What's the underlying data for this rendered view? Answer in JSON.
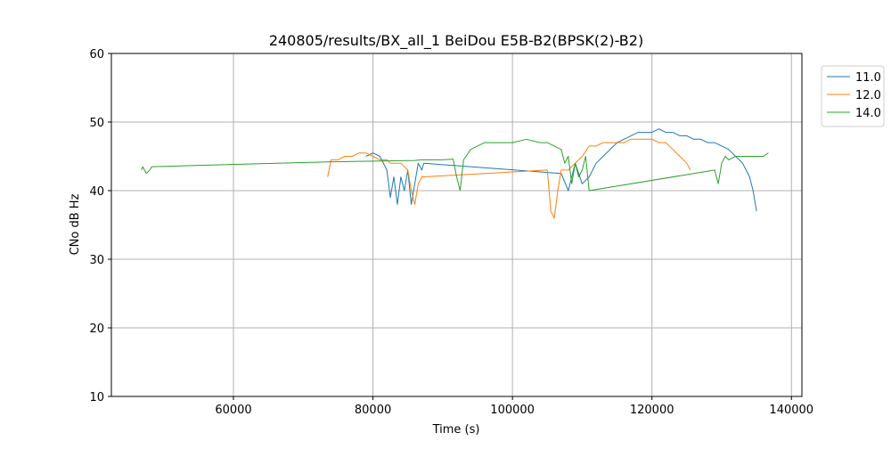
{
  "chart_data": {
    "type": "line",
    "title": "240805/results/BX_all_1 BeiDou E5B-B2(BPSK(2)-B2)",
    "xlabel": "Time (s)",
    "ylabel": "CNo dB Hz",
    "xlim": [
      42500,
      141500
    ],
    "ylim": [
      10,
      60
    ],
    "xticks": [
      60000,
      80000,
      100000,
      120000,
      140000
    ],
    "yticks": [
      10,
      20,
      30,
      40,
      50,
      60
    ],
    "grid": true,
    "legend_position": "outside-right-top",
    "series": [
      {
        "name": "11.0",
        "color": "#1f77b4",
        "x": [
          79000,
          80000,
          81000,
          82000,
          82500,
          83000,
          83500,
          84000,
          84500,
          85000,
          85500,
          86000,
          86500,
          87000,
          87300,
          107000,
          108000,
          109000,
          110000,
          111000,
          112000,
          113000,
          114000,
          115000,
          116000,
          117000,
          118000,
          119000,
          120000,
          121000,
          122000,
          123000,
          124000,
          125000,
          126000,
          127000,
          128000,
          129000,
          130000,
          131000,
          132000,
          133000,
          134000,
          134500,
          135000
        ],
        "y": [
          45,
          45.5,
          45,
          43,
          39,
          42,
          38,
          42,
          40,
          43,
          38,
          41,
          44,
          43,
          44,
          42.5,
          40,
          44,
          41,
          42,
          44,
          45,
          46,
          47,
          47.5,
          48,
          48.5,
          48.5,
          48.5,
          49,
          48.5,
          48.5,
          48,
          48,
          47.5,
          47.5,
          47,
          47,
          46.5,
          46,
          45,
          44,
          42,
          40,
          37
        ]
      },
      {
        "name": "12.0",
        "color": "#ff7f0e",
        "x": [
          73500,
          74000,
          75000,
          76000,
          77000,
          78000,
          79000,
          80000,
          81000,
          82000,
          82500,
          83000,
          84000,
          85000,
          85500,
          86000,
          86500,
          87000,
          105000,
          105500,
          106000,
          106500,
          107000,
          108000,
          109000,
          110000,
          111000,
          112000,
          113000,
          114000,
          115000,
          116000,
          117000,
          118000,
          119000,
          120000,
          121000,
          122000,
          123000,
          124000,
          125000,
          125500
        ],
        "y": [
          42,
          44.5,
          44.5,
          45,
          45,
          45.5,
          45.5,
          45,
          44.5,
          44.5,
          44,
          44,
          44,
          43,
          40,
          38,
          41,
          42,
          43,
          37,
          36,
          40,
          43,
          43,
          44,
          45,
          46.5,
          46.5,
          47,
          47,
          47,
          47,
          47.5,
          47.5,
          47.5,
          47.5,
          47,
          47,
          46,
          45,
          44,
          43
        ]
      },
      {
        "name": "14.0",
        "color": "#2ca02c",
        "x": [
          46800,
          47000,
          47500,
          48000,
          48300,
          73500,
          80000,
          86000,
          87000,
          90000,
          91500,
          92000,
          92500,
          93000,
          94000,
          95000,
          96000,
          98000,
          100000,
          102000,
          104000,
          105000,
          106000,
          107000,
          107500,
          108000,
          108500,
          109000,
          109500,
          110000,
          110500,
          111000,
          129000,
          129500,
          130000,
          130500,
          131000,
          132000,
          133000,
          134000,
          135000,
          136000,
          136700
        ],
        "y": [
          43,
          43.5,
          42.5,
          43,
          43.5,
          44.2,
          44.3,
          44.4,
          44.5,
          44.5,
          44.6,
          42,
          40,
          44.5,
          46,
          46.5,
          47,
          47,
          47,
          47.5,
          47,
          47,
          46.5,
          46,
          44,
          45,
          41,
          44,
          42,
          43,
          45,
          40,
          43,
          41,
          44,
          45,
          44.5,
          45,
          45,
          45,
          45,
          45,
          45.5
        ]
      }
    ]
  }
}
